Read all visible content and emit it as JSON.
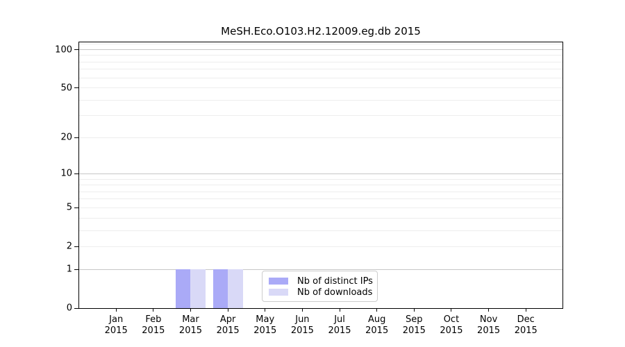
{
  "chart_data": {
    "type": "bar",
    "title": "MeSH.Eco.O103.H2.12009.eg.db 2015",
    "categories": [
      {
        "month": "Jan",
        "year": "2015"
      },
      {
        "month": "Feb",
        "year": "2015"
      },
      {
        "month": "Mar",
        "year": "2015"
      },
      {
        "month": "Apr",
        "year": "2015"
      },
      {
        "month": "May",
        "year": "2015"
      },
      {
        "month": "Jun",
        "year": "2015"
      },
      {
        "month": "Jul",
        "year": "2015"
      },
      {
        "month": "Aug",
        "year": "2015"
      },
      {
        "month": "Sep",
        "year": "2015"
      },
      {
        "month": "Oct",
        "year": "2015"
      },
      {
        "month": "Nov",
        "year": "2015"
      },
      {
        "month": "Dec",
        "year": "2015"
      }
    ],
    "series": [
      {
        "name": "Nb of distinct IPs",
        "color": "#aaaaf7",
        "values": [
          0,
          0,
          1,
          1,
          0,
          0,
          0,
          0,
          0,
          0,
          0,
          0
        ]
      },
      {
        "name": "Nb of downloads",
        "color": "#d9d9f7",
        "values": [
          0,
          0,
          1,
          1,
          0,
          0,
          0,
          0,
          0,
          0,
          0,
          0
        ]
      }
    ],
    "y_scale": "log1p",
    "y_ticks": [
      0,
      1,
      2,
      5,
      10,
      20,
      50,
      100
    ],
    "ylim": [
      0,
      113
    ],
    "grid": {
      "major_values": [
        1,
        10,
        100
      ],
      "minor_values": [
        2,
        3,
        4,
        5,
        6,
        7,
        8,
        9,
        20,
        30,
        40,
        50,
        60,
        70,
        80,
        90,
        110
      ],
      "major_color": "#c6c6c6",
      "minor_color": "#ededed"
    },
    "legend_position": "bottom-center",
    "axis_color": "#000000",
    "xlabel": "",
    "ylabel": ""
  }
}
